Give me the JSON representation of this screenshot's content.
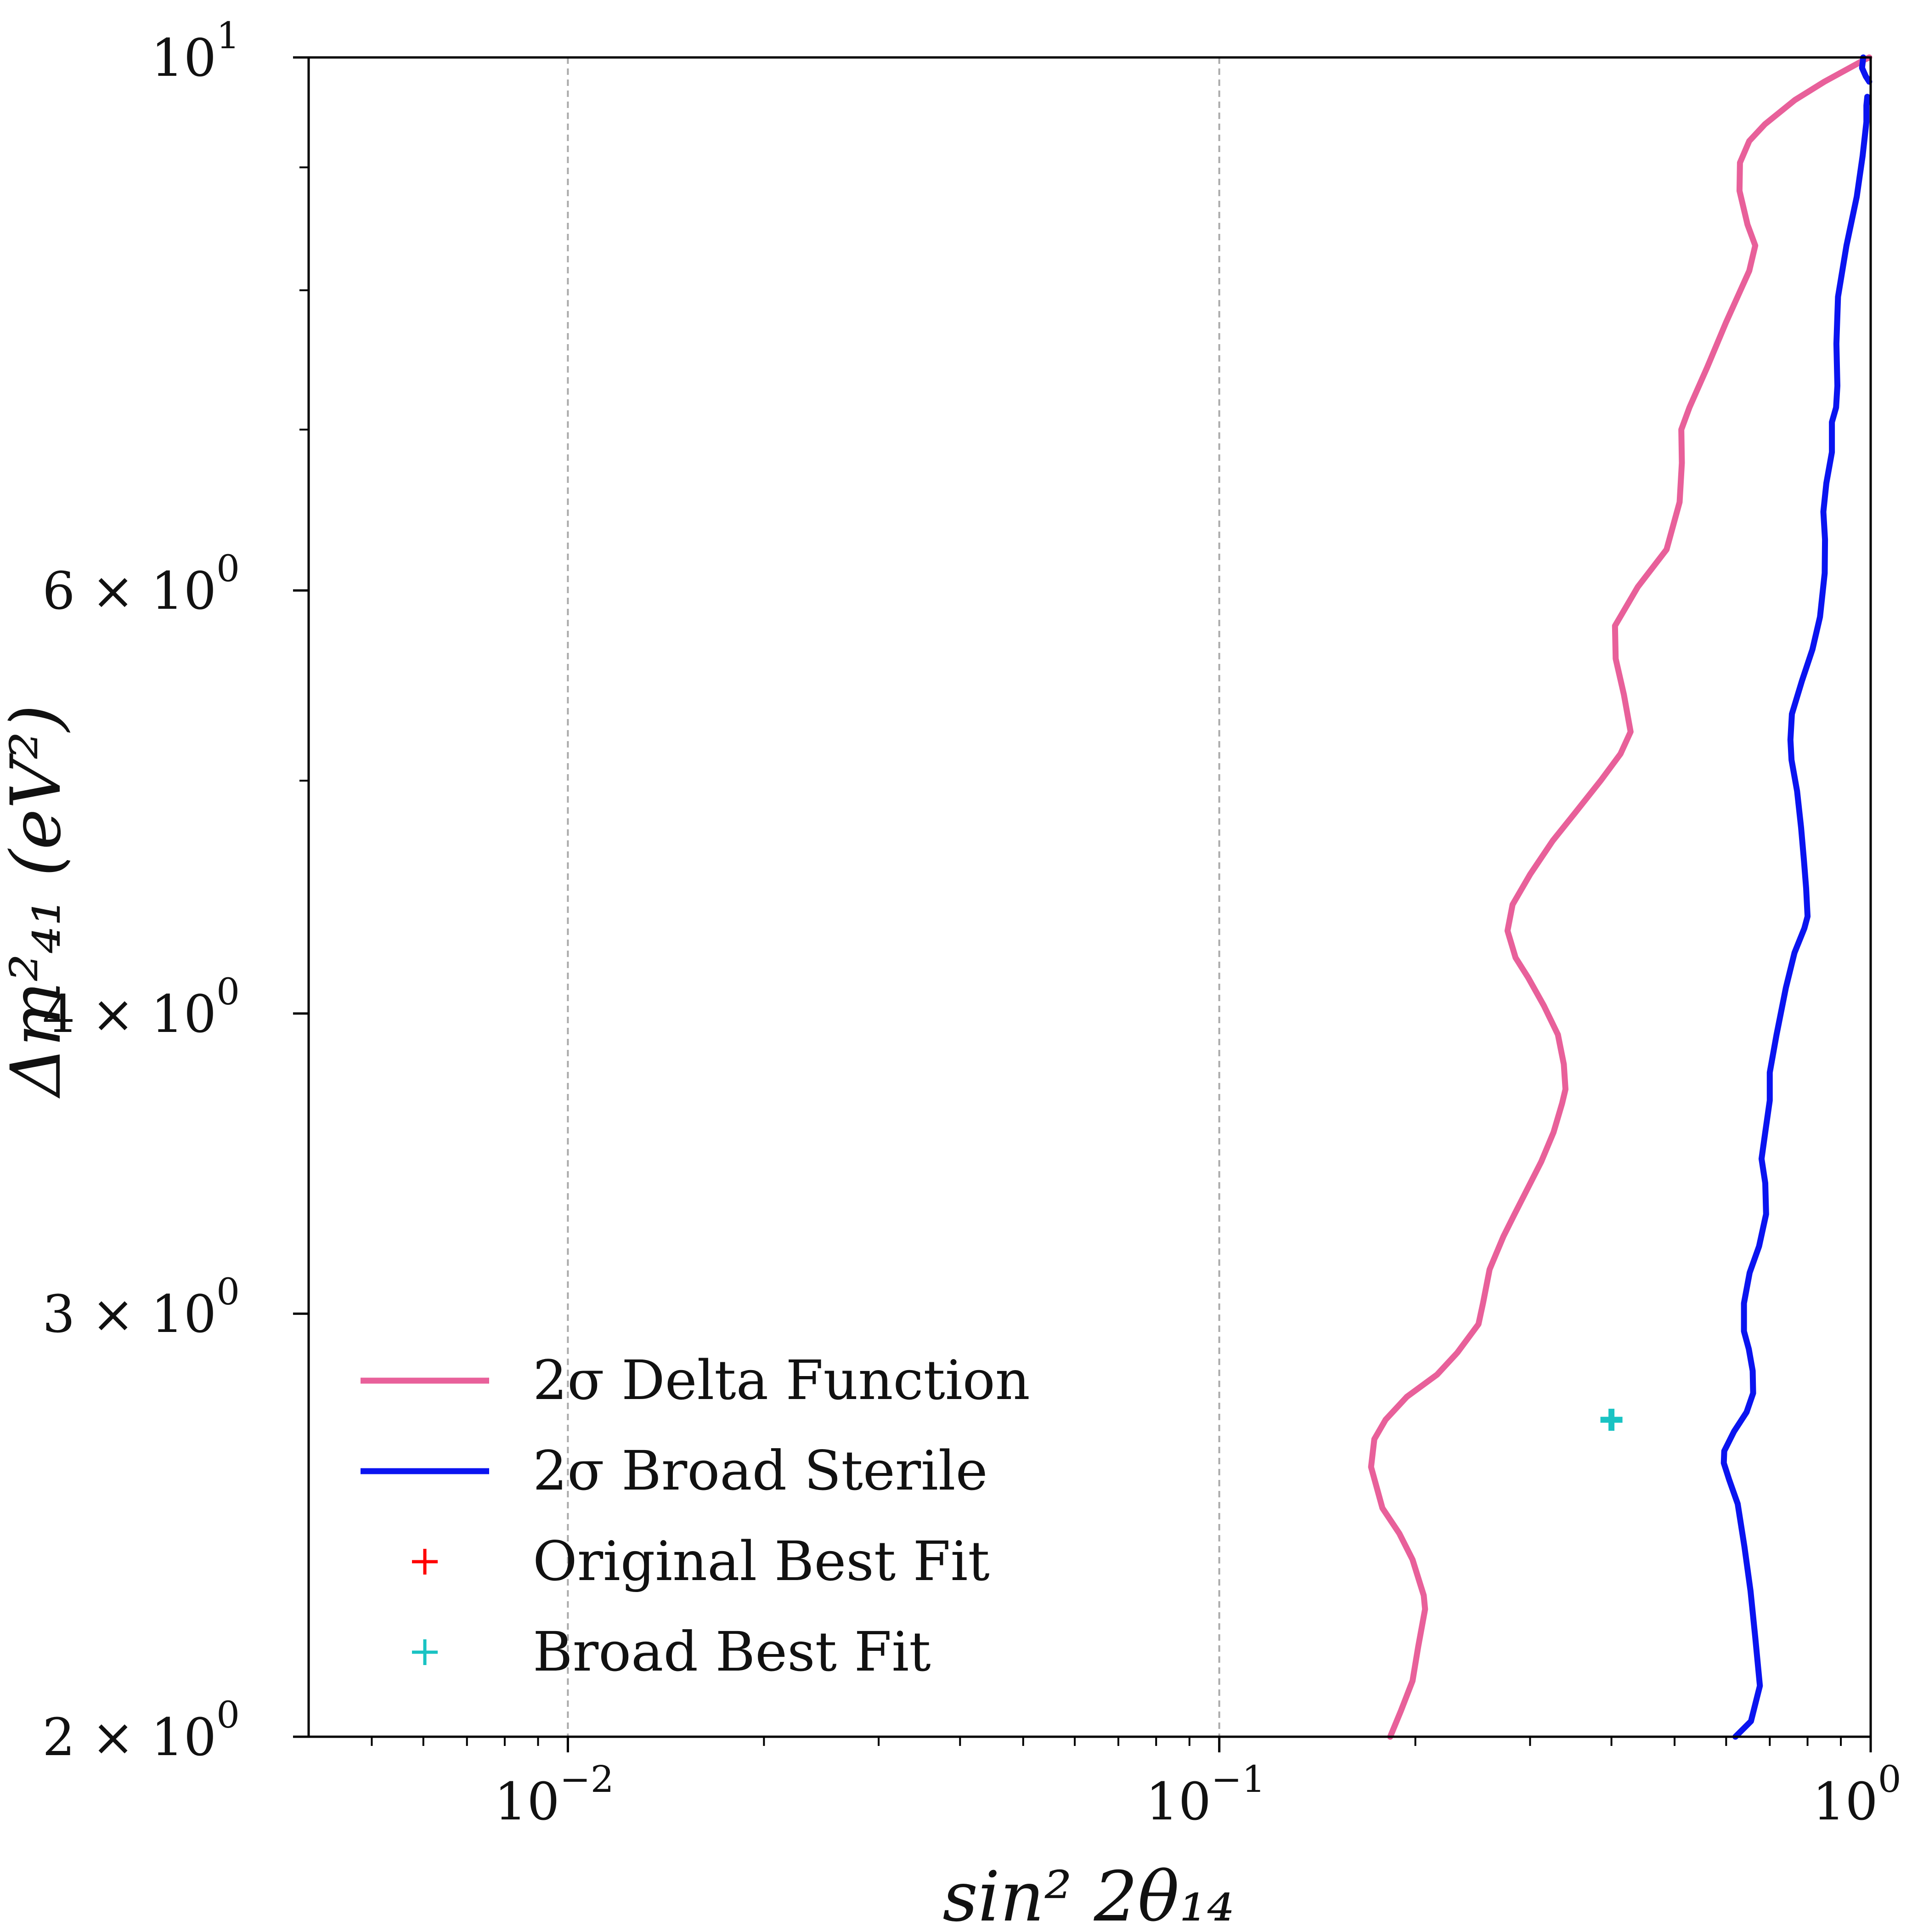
{
  "chart_data": {
    "type": "line",
    "xlabel": "sin² 2θ₁₄",
    "ylabel": "Δm²₄₁ (eV²)",
    "xscale": "log",
    "yscale": "log",
    "xlim": [
      0.004,
      1.0
    ],
    "ylim": [
      2,
      10
    ],
    "grid": "vertical dashed lines at major x ticks",
    "legend_position": "lower-left",
    "x_ticks": [
      {
        "value": 0.01,
        "base": "10",
        "exp": "−2"
      },
      {
        "value": 0.1,
        "base": "10",
        "exp": "−1"
      },
      {
        "value": 1.0,
        "base": "10",
        "exp": "0"
      }
    ],
    "y_ticks": [
      {
        "value": 2,
        "mant": "2 × 10",
        "exp": "0"
      },
      {
        "value": 3,
        "mant": "3 × 10",
        "exp": "0"
      },
      {
        "value": 4,
        "mant": "4 × 10",
        "exp": "0"
      },
      {
        "value": 6,
        "mant": "6 × 10",
        "exp": "0"
      },
      {
        "value": 10,
        "mant": "10",
        "exp": "1"
      }
    ],
    "y_minor_ticks": [
      5,
      7,
      8,
      9
    ],
    "series": [
      {
        "name": "2σ Delta Function",
        "color": "#e8609a",
        "kind": "line",
        "points": [
          [
            0.183,
            2.0
          ],
          [
            0.19,
            2.05
          ],
          [
            0.198,
            2.11
          ],
          [
            0.202,
            2.18
          ],
          [
            0.207,
            2.26
          ],
          [
            0.206,
            2.29
          ],
          [
            0.198,
            2.37
          ],
          [
            0.189,
            2.43
          ],
          [
            0.178,
            2.49
          ],
          [
            0.171,
            2.59
          ],
          [
            0.173,
            2.66
          ],
          [
            0.18,
            2.71
          ],
          [
            0.194,
            2.77
          ],
          [
            0.216,
            2.83
          ],
          [
            0.232,
            2.89
          ],
          [
            0.25,
            2.97
          ],
          [
            0.254,
            3.03
          ],
          [
            0.26,
            3.13
          ],
          [
            0.273,
            3.23
          ],
          [
            0.284,
            3.3
          ],
          [
            0.297,
            3.38
          ],
          [
            0.312,
            3.47
          ],
          [
            0.326,
            3.57
          ],
          [
            0.336,
            3.67
          ],
          [
            0.34,
            3.72
          ],
          [
            0.338,
            3.81
          ],
          [
            0.331,
            3.92
          ],
          [
            0.315,
            4.03
          ],
          [
            0.298,
            4.14
          ],
          [
            0.285,
            4.22
          ],
          [
            0.277,
            4.33
          ],
          [
            0.282,
            4.44
          ],
          [
            0.3,
            4.57
          ],
          [
            0.325,
            4.72
          ],
          [
            0.35,
            4.84
          ],
          [
            0.385,
            5.0
          ],
          [
            0.413,
            5.13
          ],
          [
            0.428,
            5.24
          ],
          [
            0.418,
            5.43
          ],
          [
            0.406,
            5.62
          ],
          [
            0.405,
            5.8
          ],
          [
            0.439,
            6.02
          ],
          [
            0.486,
            6.24
          ],
          [
            0.509,
            6.53
          ],
          [
            0.513,
            6.78
          ],
          [
            0.512,
            7.0
          ],
          [
            0.527,
            7.15
          ],
          [
            0.561,
            7.43
          ],
          [
            0.6,
            7.76
          ],
          [
            0.651,
            8.15
          ],
          [
            0.665,
            8.35
          ],
          [
            0.647,
            8.52
          ],
          [
            0.629,
            8.8
          ],
          [
            0.63,
            9.04
          ],
          [
            0.651,
            9.23
          ],
          [
            0.688,
            9.38
          ],
          [
            0.765,
            9.6
          ],
          [
            0.849,
            9.77
          ],
          [
            0.98,
            9.98
          ],
          [
            0.995,
            10.0
          ]
        ]
      },
      {
        "name": "2σ Broad Sterile",
        "color": "#0a14f0",
        "kind": "line",
        "points": [
          [
            0.62,
            2.0
          ],
          [
            0.655,
            2.03
          ],
          [
            0.676,
            2.1
          ],
          [
            0.665,
            2.2
          ],
          [
            0.654,
            2.3
          ],
          [
            0.64,
            2.4
          ],
          [
            0.625,
            2.5
          ],
          [
            0.606,
            2.56
          ],
          [
            0.595,
            2.6
          ],
          [
            0.596,
            2.63
          ],
          [
            0.617,
            2.68
          ],
          [
            0.645,
            2.73
          ],
          [
            0.66,
            2.78
          ],
          [
            0.659,
            2.84
          ],
          [
            0.65,
            2.9
          ],
          [
            0.639,
            2.95
          ],
          [
            0.639,
            3.03
          ],
          [
            0.652,
            3.12
          ],
          [
            0.674,
            3.2
          ],
          [
            0.691,
            3.3
          ],
          [
            0.689,
            3.4
          ],
          [
            0.68,
            3.48
          ],
          [
            0.689,
            3.57
          ],
          [
            0.7,
            3.68
          ],
          [
            0.7,
            3.78
          ],
          [
            0.717,
            3.92
          ],
          [
            0.741,
            4.1
          ],
          [
            0.764,
            4.24
          ],
          [
            0.791,
            4.34
          ],
          [
            0.8,
            4.39
          ],
          [
            0.796,
            4.51
          ],
          [
            0.79,
            4.63
          ],
          [
            0.782,
            4.78
          ],
          [
            0.771,
            4.95
          ],
          [
            0.756,
            5.1
          ],
          [
            0.753,
            5.2
          ],
          [
            0.757,
            5.33
          ],
          [
            0.784,
            5.5
          ],
          [
            0.814,
            5.67
          ],
          [
            0.836,
            5.85
          ],
          [
            0.85,
            6.1
          ],
          [
            0.851,
            6.3
          ],
          [
            0.846,
            6.47
          ],
          [
            0.855,
            6.65
          ],
          [
            0.872,
            6.85
          ],
          [
            0.872,
            7.05
          ],
          [
            0.885,
            7.15
          ],
          [
            0.889,
            7.3
          ],
          [
            0.886,
            7.6
          ],
          [
            0.891,
            7.95
          ],
          [
            0.918,
            8.35
          ],
          [
            0.952,
            8.75
          ],
          [
            0.972,
            9.1
          ],
          [
            0.985,
            9.4
          ],
          [
            0.985,
            9.55
          ],
          [
            0.988,
            9.63
          ]
        ]
      },
      {
        "name": "2σ Broad Sterile",
        "color": "#0a14f0",
        "kind": "line",
        "legend": false,
        "points": [
          [
            0.974,
            10.0
          ],
          [
            0.97,
            9.9
          ],
          [
            0.983,
            9.82
          ],
          [
            0.995,
            9.77
          ]
        ]
      },
      {
        "name": "Original Best Fit",
        "color": "#ff0000",
        "kind": "marker",
        "points": []
      },
      {
        "name": "Broad Best Fit",
        "color": "#19c3c3",
        "kind": "marker",
        "points": [
          [
            0.4,
            2.71
          ]
        ]
      }
    ]
  }
}
